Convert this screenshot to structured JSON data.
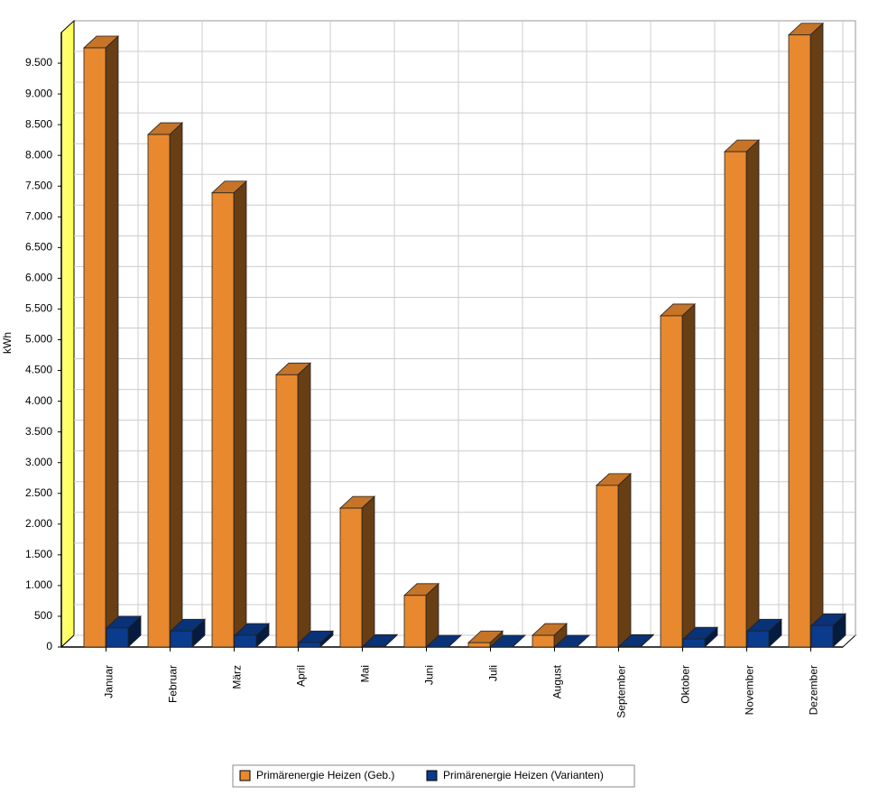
{
  "chart_data": {
    "type": "bar3d",
    "ylabel": "kWh",
    "categories": [
      "Januar",
      "Februar",
      "März",
      "April",
      "Mai",
      "Juni",
      "Juli",
      "August",
      "September",
      "Oktober",
      "November",
      "Dezember"
    ],
    "series": [
      {
        "name": "Primärenergie Heizen (Geb.)",
        "color": "#e8892f",
        "values": [
          9750,
          8340,
          7390,
          4430,
          2260,
          840,
          70,
          190,
          2630,
          5390,
          8060,
          9960
        ]
      },
      {
        "name": "Primärenergie Heizen (Varianten)",
        "color": "#0b3b8c",
        "values": [
          310,
          260,
          190,
          70,
          10,
          0,
          0,
          0,
          10,
          130,
          260,
          350
        ]
      }
    ],
    "ylim": [
      0,
      10000
    ],
    "yticks": [
      0,
      500,
      {
        "value": 1000,
        "label": "1.000"
      },
      {
        "value": 1500,
        "label": "1.500"
      },
      {
        "value": 2000,
        "label": "2.000"
      },
      {
        "value": 2500,
        "label": "2.500"
      },
      {
        "value": 3000,
        "label": "3.000"
      },
      {
        "value": 3500,
        "label": "3.500"
      },
      {
        "value": 4000,
        "label": "4.000"
      },
      {
        "value": 4500,
        "label": "4.500"
      },
      {
        "value": 5000,
        "label": "5.000"
      },
      {
        "value": 5500,
        "label": "5.500"
      },
      {
        "value": 6000,
        "label": "6.000"
      },
      {
        "value": 6500,
        "label": "6.500"
      },
      {
        "value": 7000,
        "label": "7.000"
      },
      {
        "value": 7500,
        "label": "7.500"
      },
      {
        "value": 8000,
        "label": "8.000"
      },
      {
        "value": 8500,
        "label": "8.500"
      },
      {
        "value": 9000,
        "label": "9.000"
      },
      {
        "value": 9500,
        "label": "9.500"
      }
    ],
    "grid": true
  }
}
